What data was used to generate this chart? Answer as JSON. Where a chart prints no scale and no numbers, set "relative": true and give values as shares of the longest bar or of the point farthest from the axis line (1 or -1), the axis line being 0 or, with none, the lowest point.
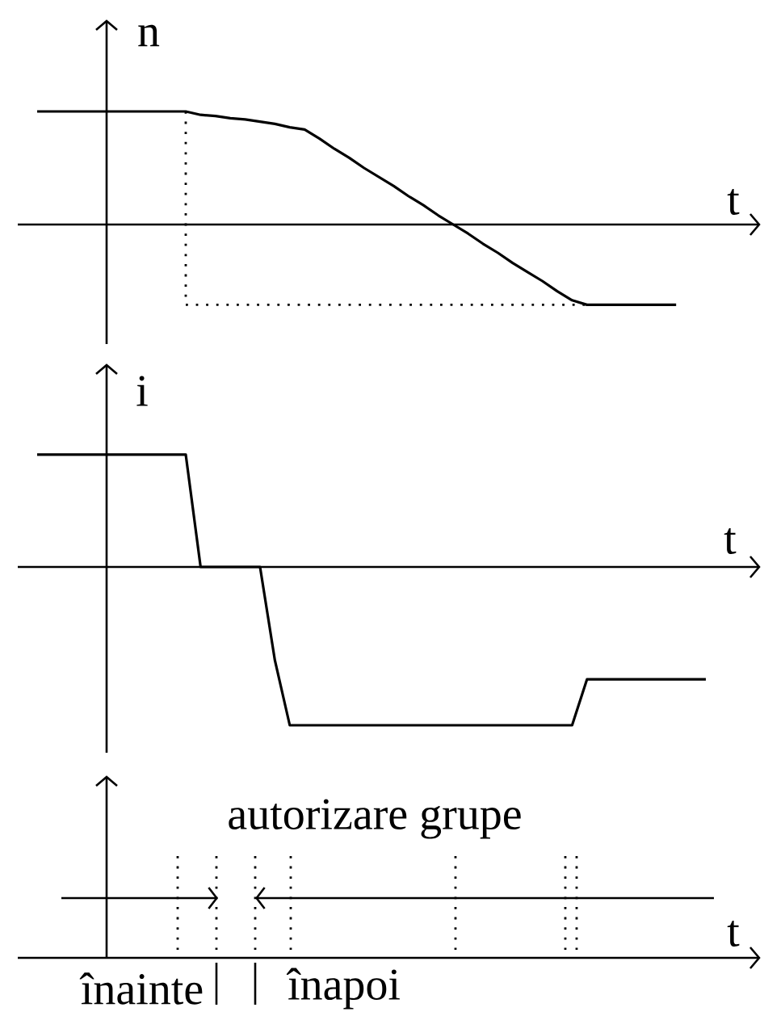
{
  "chart_data": [
    {
      "type": "line",
      "ylabel": "n",
      "xlabel": "t",
      "relative": true,
      "categories": [
        null,
        null,
        null,
        null,
        null,
        null,
        null,
        null,
        null,
        null,
        null,
        null,
        null,
        null,
        null,
        null,
        null,
        null,
        null,
        null,
        null,
        null,
        null,
        null,
        null,
        null,
        null,
        null,
        null,
        null,
        null,
        null,
        null,
        null,
        null,
        null,
        null,
        null,
        null,
        null,
        null,
        null,
        null,
        null,
        null,
        null
      ],
      "series": [
        {
          "color": "#000000",
          "values": [
            1,
            1,
            1,
            1,
            1,
            1,
            1,
            1,
            1,
            1,
            1,
            0.97,
            0.96,
            0.94,
            0.93,
            0.91,
            0.89,
            0.86,
            0.84,
            0.76,
            0.67,
            0.59,
            0.5,
            0.42,
            0.34,
            0.25,
            0.17,
            0.08,
            0,
            -0.08,
            -0.17,
            -0.25,
            -0.34,
            -0.42,
            -0.5,
            -0.59,
            -0.67,
            -0.71,
            -0.71,
            -0.71,
            -0.71,
            -0.71,
            -0.71,
            -0.71,
            null,
            null
          ]
        },
        {
          "color": "#000000",
          "line_style": "dotted",
          "values": [
            null,
            null,
            null,
            null,
            null,
            null,
            null,
            null,
            null,
            null,
            -0.71,
            -0.71,
            -0.71,
            -0.71,
            -0.71,
            -0.71,
            -0.71,
            -0.71,
            -0.71,
            -0.71,
            -0.71,
            -0.71,
            -0.71,
            -0.71,
            -0.71,
            -0.71,
            -0.71,
            -0.71,
            -0.71,
            -0.71,
            -0.71,
            -0.71,
            -0.71,
            -0.71,
            -0.71,
            -0.71,
            -0.71,
            -0.71,
            null,
            null,
            null,
            null,
            null,
            null,
            null,
            null
          ]
        }
      ]
    },
    {
      "type": "line",
      "ylabel": "i",
      "xlabel": "t",
      "relative": true,
      "categories": [
        null,
        null,
        null,
        null,
        null,
        null,
        null,
        null,
        null,
        null,
        null,
        null,
        null,
        null,
        null,
        null,
        null,
        null,
        null,
        null,
        null,
        null,
        null,
        null,
        null,
        null,
        null,
        null,
        null,
        null,
        null,
        null,
        null,
        null,
        null,
        null,
        null,
        null,
        null,
        null,
        null,
        null,
        null,
        null,
        null,
        null
      ],
      "series": [
        {
          "color": "#000000",
          "values": [
            0.71,
            0.71,
            0.71,
            0.71,
            0.71,
            0.71,
            0.71,
            0.71,
            0.71,
            0.71,
            0.71,
            0,
            0,
            0,
            0,
            0,
            -0.59,
            -1,
            -1,
            -1,
            -1,
            -1,
            -1,
            -1,
            -1,
            -1,
            -1,
            -1,
            -1,
            -1,
            -1,
            -1,
            -1,
            -1,
            -1,
            -1,
            -1,
            -0.71,
            -0.71,
            -0.71,
            -0.71,
            -0.71,
            -0.71,
            -0.71,
            -0.71,
            -0.71
          ]
        }
      ]
    },
    {
      "type": "other",
      "title": "autorizare grupe",
      "xlabel": "t",
      "annotations": [
        "înainte",
        "înapoi"
      ]
    }
  ]
}
